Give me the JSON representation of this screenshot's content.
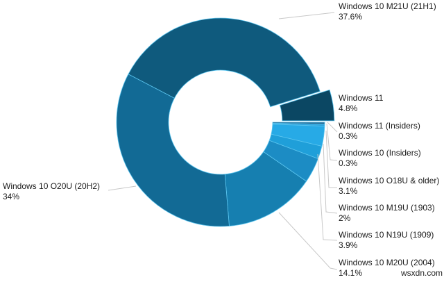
{
  "chart_data": {
    "type": "pie",
    "subtype": "donut",
    "title": "",
    "start_angle_deg": 0,
    "direction": "clockwise",
    "legend": "none (leader-line labels)",
    "slices": [
      {
        "label": "Windows 11 (Insiders)",
        "value": 0.3,
        "display": "0.3%",
        "color": "#1e5f8a",
        "exploded": false
      },
      {
        "label": "Windows 10 (Insiders)",
        "value": 0.3,
        "display": "0.3%",
        "color": "#2a9fd8",
        "exploded": false
      },
      {
        "label": "Windows 10 O18U & older)",
        "value": 3.1,
        "display": "3.1%",
        "color": "#27aae6",
        "exploded": false
      },
      {
        "label": "Windows 10 M19U (1903)",
        "value": 2,
        "display": "2%",
        "color": "#1f9fd9",
        "exploded": false
      },
      {
        "label": "Windows 10 N19U (1909)",
        "value": 3.9,
        "display": "3.9%",
        "color": "#1c8cc4",
        "exploded": false
      },
      {
        "label": "Windows 10 M20U (2004)",
        "value": 14.1,
        "display": "14.1%",
        "color": "#167fb0",
        "exploded": false
      },
      {
        "label": "Windows 10 O20U (20H2)",
        "value": 34,
        "display": "34%",
        "color": "#126a95",
        "exploded": false
      },
      {
        "label": "Windows 10 M21U (21H1)",
        "value": 37.6,
        "display": "37.6%",
        "color": "#0f5a7d",
        "exploded": false
      },
      {
        "label": "Windows 11",
        "value": 4.8,
        "display": "4.8%",
        "color": "#0b4763",
        "exploded": true
      }
    ]
  },
  "labels": {
    "m21u": {
      "name": "Windows 10 M21U (21H1)",
      "pct": "37.6%"
    },
    "win11": {
      "name": "Windows 11",
      "pct": "4.8%"
    },
    "win11_insiders": {
      "name": "Windows 11 (Insiders)",
      "pct": "0.3%"
    },
    "win10_insiders": {
      "name": "Windows 10 (Insiders)",
      "pct": "0.3%"
    },
    "o18u": {
      "name": "Windows 10 O18U & older)",
      "pct": "3.1%"
    },
    "m19u": {
      "name": "Windows 10 M19U (1903)",
      "pct": "2%"
    },
    "n19u": {
      "name": "Windows 10 N19U (1909)",
      "pct": "3.9%"
    },
    "m20u": {
      "name": "Windows 10 M20U (2004)",
      "pct": "14.1%"
    },
    "o20u": {
      "name": "Windows 10 O20U (20H2)",
      "pct": "34%"
    }
  },
  "watermark": "wsxdn.com"
}
